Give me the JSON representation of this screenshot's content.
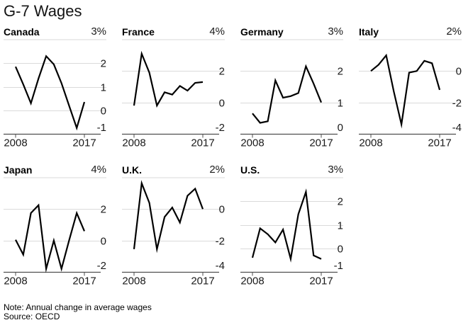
{
  "title": "G-7 Wages",
  "footer": {
    "note": "Note: Annual change in average wages",
    "source": "Source: OECD"
  },
  "colors": {
    "line": "#000000",
    "grid": "#dadada",
    "axis": "#4f4f4f",
    "text": "#1a1a1a"
  },
  "years": [
    2008,
    2009,
    2010,
    2011,
    2012,
    2013,
    2014,
    2015,
    2016,
    2017
  ],
  "x_axis": {
    "start_label": "2008",
    "end_label": "2017"
  },
  "chart_data": [
    {
      "type": "line",
      "country": "Canada",
      "unit": "%",
      "top_label": "3%",
      "ymax": 3,
      "ymin": -1,
      "grid_values": [
        2,
        1,
        0
      ],
      "bottom_label": "-1",
      "values": [
        1.85,
        1.1,
        0.3,
        1.35,
        2.3,
        1.95,
        1.15,
        0.2,
        -0.75,
        0.35
      ]
    },
    {
      "type": "line",
      "country": "France",
      "unit": "%",
      "top_label": "4%",
      "ymax": 4,
      "ymin": -2,
      "grid_values": [
        2,
        0
      ],
      "bottom_label": "-2",
      "values": [
        -0.2,
        3.1,
        1.9,
        -0.2,
        0.65,
        0.5,
        1.05,
        0.75,
        1.25,
        1.3
      ]
    },
    {
      "type": "line",
      "country": "Germany",
      "unit": "%",
      "top_label": "3%",
      "ymax": 3,
      "ymin": 0,
      "grid_values": [
        2,
        1
      ],
      "bottom_label": "0",
      "values": [
        0.65,
        0.35,
        0.4,
        1.7,
        1.15,
        1.2,
        1.3,
        2.15,
        1.6,
        1.0
      ]
    },
    {
      "type": "line",
      "country": "Italy",
      "unit": "%",
      "top_label": "2%",
      "ymax": 2,
      "ymin": -4,
      "grid_values": [
        0,
        -2
      ],
      "bottom_label": "-4",
      "values": [
        0.0,
        0.4,
        1.0,
        -1.3,
        -3.4,
        -0.1,
        0.0,
        0.65,
        0.5,
        -1.2
      ]
    },
    {
      "type": "line",
      "country": "Japan",
      "unit": "%",
      "top_label": "4%",
      "ymax": 4,
      "ymin": -2,
      "grid_values": [
        2,
        0
      ],
      "bottom_label": "-2",
      "values": [
        0.05,
        -0.9,
        1.75,
        2.25,
        -1.8,
        0.0,
        -1.8,
        0.0,
        1.75,
        0.6
      ]
    },
    {
      "type": "line",
      "country": "U.K.",
      "unit": "%",
      "top_label": "2%",
      "ymax": 2,
      "ymin": -4,
      "grid_values": [
        0,
        -2
      ],
      "bottom_label": "-4",
      "values": [
        -2.55,
        1.65,
        0.4,
        -2.55,
        -0.5,
        0.1,
        -0.85,
        0.85,
        1.3,
        0.0
      ]
    },
    {
      "type": "line",
      "country": "U.S.",
      "unit": "%",
      "top_label": "3%",
      "ymax": 3,
      "ymin": -1,
      "grid_values": [
        2,
        1,
        0
      ],
      "bottom_label": "-1",
      "values": [
        -0.4,
        0.85,
        0.6,
        0.25,
        0.8,
        -0.45,
        1.45,
        2.4,
        -0.3,
        -0.45
      ]
    }
  ]
}
